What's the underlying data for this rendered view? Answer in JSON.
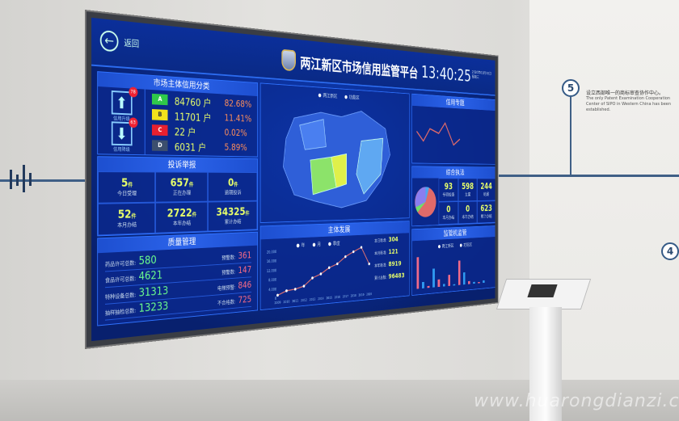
{
  "screen": {
    "back_label": "返回",
    "title": "两江新区市场信用监管平台",
    "time": "13:40:25",
    "date_line1": "2020年01月08日",
    "date_line2": "星期三",
    "credit": {
      "title": "市场主体信用分类",
      "upgrade": {
        "label": "信用升级",
        "badge": "78"
      },
      "downgrade": {
        "label": "信用降级",
        "badge": "63"
      },
      "grades": [
        {
          "grade": "A",
          "count": "84760",
          "unit": "户",
          "pct": "82.68%",
          "color": "#2fc94a"
        },
        {
          "grade": "B",
          "count": "11701",
          "unit": "户",
          "pct": "11.41%",
          "color": "#f2e21b"
        },
        {
          "grade": "C",
          "count": "22",
          "unit": "户",
          "pct": "0.02%",
          "color": "#e8202f"
        },
        {
          "grade": "D",
          "count": "6031",
          "unit": "户",
          "pct": "5.89%",
          "color": "#3c4f6e"
        }
      ]
    },
    "complaints": {
      "title": "投诉举报",
      "unit": "件",
      "cells": [
        {
          "value": "5",
          "label": "今日受理"
        },
        {
          "value": "657",
          "label": "正在办理"
        },
        {
          "value": "0",
          "label": "逾期投诉"
        },
        {
          "value": "52",
          "label": "本月办结"
        },
        {
          "value": "2722",
          "label": "本年办结"
        },
        {
          "value": "34325",
          "label": "累计办结"
        }
      ]
    },
    "quality": {
      "title": "质量管理",
      "rows": [
        {
          "left_label": "药品许可总数:",
          "left_value": "580",
          "right_label": "预警数:",
          "right_value": "361"
        },
        {
          "left_label": "食品许可总数:",
          "left_value": "4621",
          "right_label": "预警数:",
          "right_value": "147"
        },
        {
          "left_label": "特种设备总数:",
          "left_value": "31313",
          "right_label": "电梯预警:",
          "right_value": "846"
        },
        {
          "left_label": "抽样抽检总数:",
          "left_value": "13233",
          "right_label": "不合格数:",
          "right_value": "725"
        }
      ]
    },
    "map": {
      "options": [
        "两江新区",
        "功能区"
      ]
    },
    "development": {
      "title": "主体发展",
      "legend": [
        "年",
        "月",
        "季度"
      ],
      "kpis": [
        {
          "label": "本日新增:",
          "value": "304"
        },
        {
          "label": "本月新增:",
          "value": "121"
        },
        {
          "label": "本年新增:",
          "value": "8919"
        },
        {
          "label": "累计总数:",
          "value": "96483"
        }
      ],
      "years": [
        "2009",
        "2010",
        "2011",
        "2012",
        "2013",
        "2014",
        "2015",
        "2016",
        "2017",
        "2018",
        "2019",
        "2020"
      ],
      "values": [
        1200,
        2800,
        3200,
        4200,
        7500,
        9000,
        11500,
        13000,
        16000,
        18000,
        19800,
        12000
      ],
      "yticks": [
        "0",
        "4,000",
        "8,000",
        "12,000",
        "16,000",
        "20,000"
      ]
    },
    "right_top": {
      "title": "信用专题"
    },
    "enforcement": {
      "title": "综合执法",
      "cells": [
        {
          "value": "93",
          "label": "专项检查"
        },
        {
          "value": "598",
          "label": "立案"
        },
        {
          "value": "244",
          "label": "结案"
        },
        {
          "value": "0",
          "label": "本月办结"
        },
        {
          "value": "0",
          "label": "本年办结"
        },
        {
          "value": "623",
          "label": "累计办结"
        }
      ]
    },
    "monitor": {
      "title": "监管机监管",
      "legend": [
        "两江新区",
        "功能区"
      ]
    }
  },
  "wall": {
    "step": "5",
    "step_next": "4",
    "text_cn": "设立西部唯一的商标审查协作中心。",
    "text_en": "The only Patent Examination Cooperation Center of SIPO in Western China has been established."
  },
  "watermark": "www.huarongdianzi.com"
}
